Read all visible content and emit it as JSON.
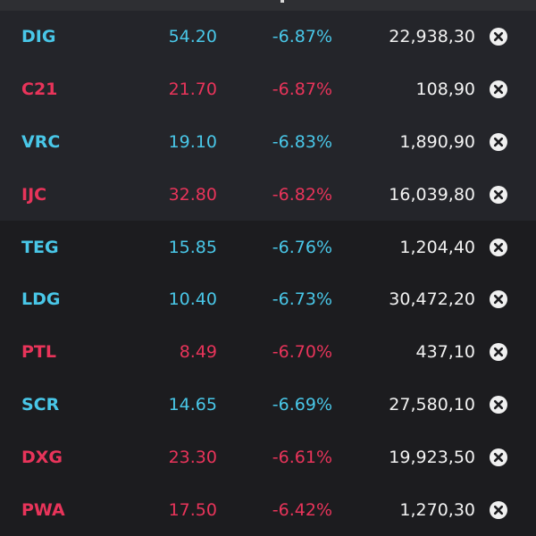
{
  "colors": {
    "up_color": "#49c7e8",
    "down_color": "#e8345a",
    "volume_color": "#f2f2f2",
    "background": "#1c1c1f",
    "row_alt_background": "#24252a"
  },
  "rows": [
    {
      "symbol": "DIG",
      "price": "54.20",
      "change": "-6.87%",
      "volume": "22,938,30",
      "price_color": "cyan",
      "change_color": "cyan",
      "close_icon": "close-circle-icon"
    },
    {
      "symbol": "C21",
      "price": "21.70",
      "change": "-6.87%",
      "volume": "108,90",
      "price_color": "red",
      "change_color": "red",
      "close_icon": "close-circle-icon"
    },
    {
      "symbol": "VRC",
      "price": "19.10",
      "change": "-6.83%",
      "volume": "1,890,90",
      "price_color": "cyan",
      "change_color": "cyan",
      "close_icon": "close-circle-icon"
    },
    {
      "symbol": "IJC",
      "price": "32.80",
      "change": "-6.82%",
      "volume": "16,039,80",
      "price_color": "red",
      "change_color": "red",
      "close_icon": "close-circle-icon"
    },
    {
      "symbol": "TEG",
      "price": "15.85",
      "change": "-6.76%",
      "volume": "1,204,40",
      "price_color": "cyan",
      "change_color": "cyan",
      "close_icon": "close-circle-icon"
    },
    {
      "symbol": "LDG",
      "price": "10.40",
      "change": "-6.73%",
      "volume": "30,472,20",
      "price_color": "cyan",
      "change_color": "cyan",
      "close_icon": "close-circle-icon"
    },
    {
      "symbol": "PTL",
      "price": "8.49",
      "change": "-6.70%",
      "volume": "437,10",
      "price_color": "red",
      "change_color": "red",
      "close_icon": "close-circle-icon"
    },
    {
      "symbol": "SCR",
      "price": "14.65",
      "change": "-6.69%",
      "volume": "27,580,10",
      "price_color": "cyan",
      "change_color": "cyan",
      "close_icon": "close-circle-icon"
    },
    {
      "symbol": "DXG",
      "price": "23.30",
      "change": "-6.61%",
      "volume": "19,923,50",
      "price_color": "red",
      "change_color": "red",
      "close_icon": "close-circle-icon"
    },
    {
      "symbol": "PWA",
      "price": "17.50",
      "change": "-6.42%",
      "volume": "1,270,30",
      "price_color": "red",
      "change_color": "red",
      "close_icon": "close-circle-icon"
    }
  ]
}
